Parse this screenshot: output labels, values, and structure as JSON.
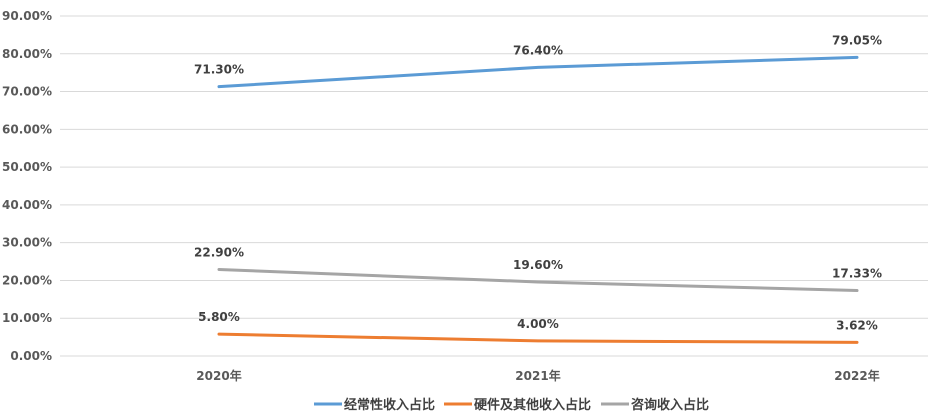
{
  "chart_data": {
    "type": "line",
    "title": "",
    "xlabel": "",
    "ylabel": "",
    "categories": [
      "2020年",
      "2021年",
      "2022年"
    ],
    "ylim": [
      0,
      90
    ],
    "yticks": [
      "0.00%",
      "10.00%",
      "20.00%",
      "30.00%",
      "40.00%",
      "50.00%",
      "60.00%",
      "70.00%",
      "80.00%",
      "90.00%"
    ],
    "grid": true,
    "legend_position": "bottom",
    "series": [
      {
        "name": "经常性收入占比",
        "color": "#5b9bd5",
        "values": [
          71.3,
          76.4,
          79.05
        ],
        "labels": [
          "71.30%",
          "76.40%",
          "79.05%"
        ]
      },
      {
        "name": "硬件及其他收入占比",
        "color": "#ed7d31",
        "values": [
          5.8,
          4.0,
          3.62
        ],
        "labels": [
          "5.80%",
          "4.00%",
          "3.62%"
        ]
      },
      {
        "name": "咨询收入占比",
        "color": "#a5a5a5",
        "values": [
          22.9,
          19.6,
          17.33
        ],
        "labels": [
          "22.90%",
          "19.60%",
          "17.33%"
        ]
      }
    ]
  }
}
